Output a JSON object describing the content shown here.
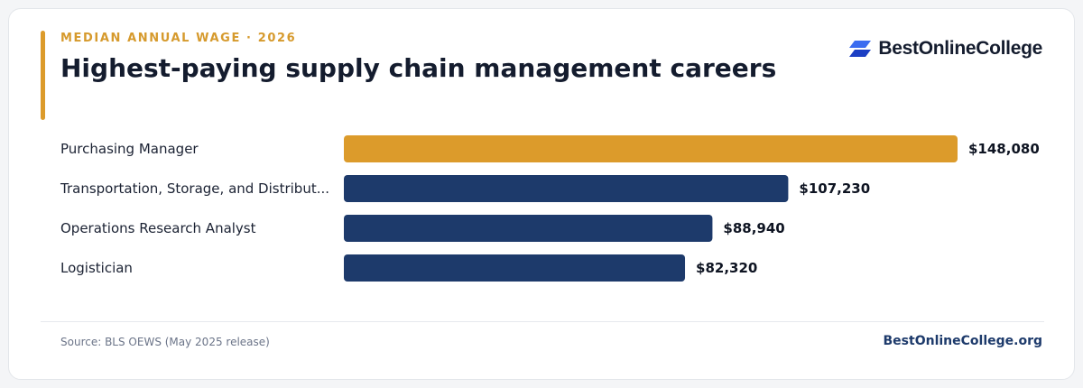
{
  "header": {
    "eyebrow": "MEDIAN ANNUAL WAGE · 2026",
    "title": "Highest-paying supply chain management careers"
  },
  "brand": {
    "logo_text": "BestOnlineCollege",
    "logo_icon": "stacked-parallelogram-logo-icon"
  },
  "colors": {
    "highlight": "#dc9b2b",
    "bar": "#1d3a6b",
    "logo_light": "#3b6cf0",
    "logo_dark": "#1c3fc4"
  },
  "chart_data": {
    "type": "bar",
    "orientation": "horizontal",
    "title": "Highest-paying supply chain management careers",
    "categories": [
      "Purchasing Manager",
      "Transportation, Storage, and Distribut...",
      "Operations Research Analyst",
      "Logistician"
    ],
    "values": [
      148080,
      107230,
      88940,
      82320
    ],
    "value_labels": [
      "$148,080",
      "$107,230",
      "$88,940",
      "$82,320"
    ],
    "highlight_index": 0,
    "xlim": [
      0,
      148080
    ],
    "grid": false,
    "legend": "none"
  },
  "footer": {
    "source": "Source: BLS OEWS (May 2025 release)",
    "site": "BestOnlineCollege.org"
  }
}
